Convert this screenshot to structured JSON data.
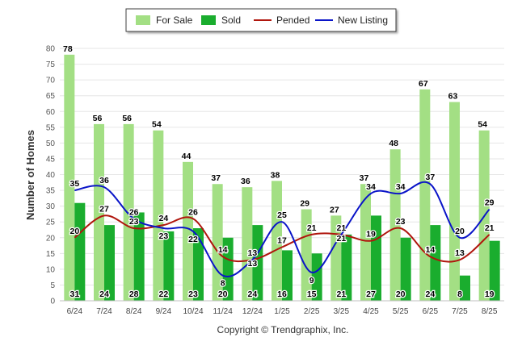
{
  "chart_data": {
    "type": "bar",
    "categories": [
      "6/24",
      "7/24",
      "8/24",
      "9/24",
      "10/24",
      "11/24",
      "12/24",
      "1/25",
      "2/25",
      "3/25",
      "4/25",
      "5/25",
      "6/25",
      "7/25",
      "8/25"
    ],
    "series": [
      {
        "name": "For Sale",
        "kind": "bar",
        "color": "#a3df84",
        "values": [
          78,
          56,
          56,
          54,
          44,
          37,
          36,
          38,
          29,
          27,
          37,
          48,
          67,
          63,
          54
        ]
      },
      {
        "name": "Sold",
        "kind": "bar",
        "color": "#1aad2e",
        "values": [
          31,
          24,
          28,
          22,
          23,
          20,
          24,
          16,
          15,
          21,
          27,
          20,
          24,
          8,
          19
        ]
      },
      {
        "name": "Pended",
        "kind": "line",
        "color": "#b0160d",
        "values": [
          20,
          27,
          23,
          24,
          26,
          14,
          13,
          17,
          21,
          21,
          19,
          23,
          14,
          13,
          21
        ]
      },
      {
        "name": "New Listing",
        "kind": "line",
        "color": "#0a14c8",
        "values": [
          35,
          36,
          26,
          23,
          22,
          8,
          13,
          25,
          9,
          21,
          34,
          34,
          37,
          20,
          29
        ]
      }
    ],
    "ylabel": "Number of Homes",
    "xlabel": "",
    "ylim": [
      0,
      80
    ],
    "yticks": [
      0,
      5,
      10,
      15,
      20,
      25,
      30,
      35,
      40,
      45,
      50,
      55,
      60,
      65,
      70,
      75,
      80
    ],
    "grid": true,
    "legend": "top-center",
    "footer": "Copyright © Trendgraphix, Inc."
  }
}
